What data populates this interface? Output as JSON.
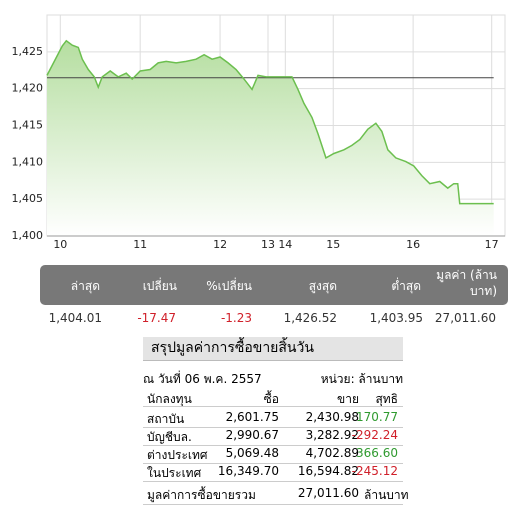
{
  "chart_data": {
    "type": "line",
    "x": [
      -10,
      1.5,
      4.5,
      9,
      13.5,
      16.5,
      21,
      25.5,
      28.5,
      31.5,
      37.5,
      43.5,
      49.5,
      54,
      60,
      67.5,
      73.5,
      79.5,
      87,
      94.5,
      102,
      108,
      114,
      120,
      126,
      132,
      138,
      144,
      148.5,
      154.5,
      161,
      174,
      178.5,
      183,
      189,
      193.5,
      199.5,
      205.5,
      213,
      219,
      225,
      231,
      237,
      241.5,
      246,
      252,
      259.5,
      265.5,
      271.5,
      277.5,
      285,
      291,
      295.5,
      298.5,
      300,
      325.5
    ],
    "series": [
      {
        "color": "#6cbf4f",
        "values": [
          1421.8,
          1425.8,
          1426.5,
          1425.9,
          1425.6,
          1424.0,
          1422.6,
          1421.6,
          1420.2,
          1421.6,
          1422.4,
          1421.6,
          1422.1,
          1421.3,
          1422.4,
          1422.6,
          1423.5,
          1423.7,
          1423.5,
          1423.7,
          1424.0,
          1424.6,
          1424.0,
          1424.3,
          1423.5,
          1422.6,
          1421.3,
          1419.9,
          1421.8,
          1421.6,
          1421.6,
          1421.6,
          1419.9,
          1418.0,
          1416.1,
          1413.9,
          1410.6,
          1411.2,
          1411.7,
          1412.3,
          1413.1,
          1414.5,
          1415.3,
          1414.2,
          1411.7,
          1410.6,
          1410.1,
          1409.5,
          1408.2,
          1407.1,
          1407.4,
          1406.5,
          1407.1,
          1407.1,
          1404.4,
          1404.4
        ]
      }
    ],
    "prev_close": 1421.48,
    "prev_close_color": "#444444",
    "xlim": [
      -10,
      334
    ],
    "xticks": [
      {
        "value": 0,
        "label": "10"
      },
      {
        "value": 60,
        "label": "11"
      },
      {
        "value": 120,
        "label": "12"
      },
      {
        "value": 156,
        "label": "13"
      },
      {
        "value": 169,
        "label": "14"
      },
      {
        "value": 205,
        "label": "15"
      },
      {
        "value": 265,
        "label": "16"
      },
      {
        "value": 324,
        "label": "17"
      }
    ],
    "ylim": [
      1400,
      1430
    ],
    "yticks": [
      {
        "value": 1400,
        "label": "1,400"
      },
      {
        "value": 1405,
        "label": "1,405"
      },
      {
        "value": 1410,
        "label": "1,410"
      },
      {
        "value": 1415,
        "label": "1,415"
      },
      {
        "value": 1420,
        "label": "1,420"
      },
      {
        "value": 1425,
        "label": "1,425"
      }
    ],
    "grid": true
  },
  "summary": {
    "headers": [
      "ล่าสุด",
      "เปลี่ยน",
      "%เปลี่ยน",
      "สูงสุด",
      "ต่ำสุด",
      "มูลค่า (ล้านบาท)"
    ],
    "values": [
      "1,404.01",
      "-17.47",
      "-1.23",
      "1,426.52",
      "1,403.95",
      "27,011.60"
    ]
  },
  "trading_table": {
    "title": "สรุปมูลค่าการซื้อขายสิ้นวัน",
    "date": "ณ วันที่ 06 พ.ค. 2557",
    "unit": "หน่วย: ล้านบาท",
    "header": [
      "นักลงทุน",
      "ซื้อ",
      "ขาย",
      "สุทธิ"
    ],
    "rows": [
      [
        "สถาบัน",
        "2,601.75",
        "2,430.98",
        "170.77"
      ],
      [
        "บัญชีบล.",
        "2,990.67",
        "3,282.92",
        "-292.24"
      ],
      [
        "ต่างประเทศ",
        "5,069.48",
        "4,702.89",
        "366.60"
      ],
      [
        "ในประเทศ",
        "16,349.70",
        "16,594.82",
        "-245.12"
      ]
    ],
    "total_label": "มูลค่าการซื้อขายรวม",
    "total_value": "27,011.60",
    "total_unit": "ล้านบาท"
  }
}
